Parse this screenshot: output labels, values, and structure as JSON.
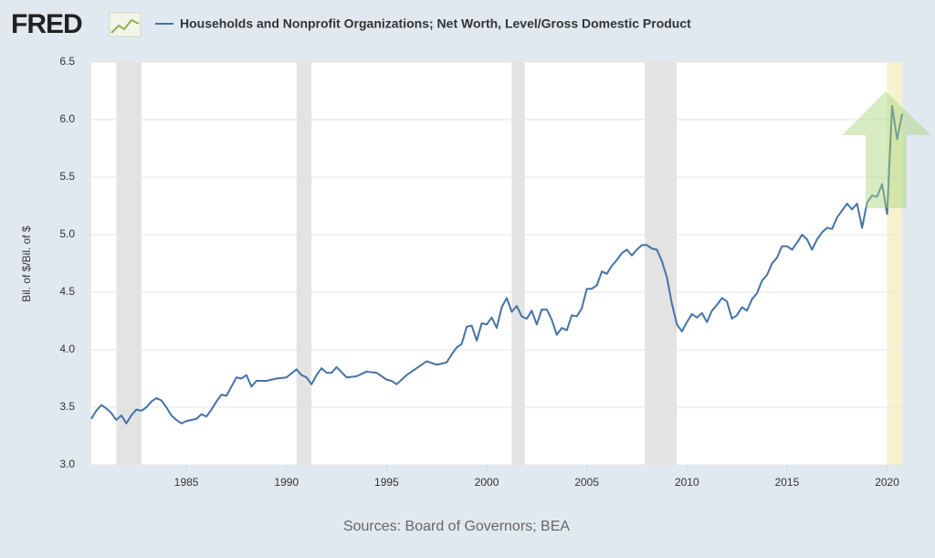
{
  "chart_data": {
    "type": "line",
    "logo": "FRED",
    "title": "Households and Nonprofit Organizations; Net Worth, Level/Gross Domestic Product",
    "y_label": "Bil. of $/Bil. of $",
    "source": "Sources: Board of Governors; BEA",
    "series": [
      {
        "name": "Households and Nonprofit Organizations; Net Worth, Level/Gross Domestic Product",
        "color": "#4572a7",
        "x": [
          1980.25,
          1980.5,
          1980.75,
          1981,
          1981.25,
          1981.5,
          1981.75,
          1982,
          1982.25,
          1982.5,
          1982.75,
          1983,
          1983.25,
          1983.5,
          1983.75,
          1984,
          1984.25,
          1984.5,
          1984.75,
          1985,
          1985.5,
          1985.75,
          1986,
          1986.25,
          1986.5,
          1986.75,
          1987,
          1987.25,
          1987.5,
          1987.75,
          1988,
          1988.25,
          1988.5,
          1989,
          1989.5,
          1990,
          1990.5,
          1990.75,
          1991,
          1991.25,
          1991.5,
          1991.75,
          1992,
          1992.25,
          1992.5,
          1993,
          1993.5,
          1994,
          1994.5,
          1995,
          1995.25,
          1995.5,
          1996,
          1996.5,
          1997,
          1997.5,
          1997.75,
          1998,
          1998.25,
          1998.5,
          1998.75,
          1999,
          1999.25,
          1999.5,
          1999.75,
          2000,
          2000.25,
          2000.5,
          2000.75,
          2001,
          2001.25,
          2001.5,
          2001.75,
          2002,
          2002.25,
          2002.5,
          2002.75,
          2003,
          2003.25,
          2003.5,
          2003.75,
          2004,
          2004.25,
          2004.5,
          2004.75,
          2005,
          2005.25,
          2005.5,
          2005.75,
          2006,
          2006.25,
          2006.5,
          2006.75,
          2007,
          2007.25,
          2007.5,
          2007.75,
          2008,
          2008.25,
          2008.5,
          2008.75,
          2009,
          2009.25,
          2009.5,
          2009.75,
          2010,
          2010.25,
          2010.5,
          2010.75,
          2011,
          2011.25,
          2011.5,
          2011.75,
          2012,
          2012.25,
          2012.5,
          2012.75,
          2013,
          2013.25,
          2013.5,
          2013.75,
          2014,
          2014.25,
          2014.5,
          2014.75,
          2015,
          2015.25,
          2015.5,
          2015.75,
          2016,
          2016.25,
          2016.5,
          2016.75,
          2017,
          2017.25,
          2017.5,
          2017.75,
          2018,
          2018.25,
          2018.5,
          2018.75,
          2019,
          2019.25,
          2019.5,
          2019.75,
          2020,
          2020.25,
          2020.5,
          2020.75
        ],
        "values": [
          3.4,
          3.47,
          3.52,
          3.49,
          3.45,
          3.39,
          3.43,
          3.36,
          3.43,
          3.48,
          3.47,
          3.5,
          3.55,
          3.58,
          3.56,
          3.5,
          3.43,
          3.39,
          3.36,
          3.38,
          3.4,
          3.44,
          3.42,
          3.48,
          3.55,
          3.61,
          3.6,
          3.68,
          3.76,
          3.75,
          3.78,
          3.68,
          3.73,
          3.73,
          3.75,
          3.76,
          3.83,
          3.78,
          3.76,
          3.7,
          3.78,
          3.84,
          3.8,
          3.8,
          3.85,
          3.76,
          3.77,
          3.81,
          3.8,
          3.74,
          3.73,
          3.7,
          3.78,
          3.84,
          3.9,
          3.87,
          3.88,
          3.89,
          3.96,
          4.02,
          4.05,
          4.2,
          4.21,
          4.08,
          4.23,
          4.22,
          4.28,
          4.19,
          4.37,
          4.45,
          4.33,
          4.38,
          4.29,
          4.27,
          4.34,
          4.22,
          4.35,
          4.35,
          4.26,
          4.13,
          4.19,
          4.17,
          4.3,
          4.29,
          4.36,
          4.53,
          4.53,
          4.56,
          4.68,
          4.66,
          4.73,
          4.78,
          4.84,
          4.87,
          4.82,
          4.87,
          4.91,
          4.91,
          4.88,
          4.87,
          4.77,
          4.63,
          4.4,
          4.22,
          4.16,
          4.24,
          4.31,
          4.28,
          4.32,
          4.24,
          4.34,
          4.39,
          4.45,
          4.42,
          4.27,
          4.3,
          4.37,
          4.34,
          4.44,
          4.49,
          4.6,
          4.65,
          4.75,
          4.8,
          4.9,
          4.9,
          4.87,
          4.93,
          5.0,
          4.96,
          4.87,
          4.96,
          5.02,
          5.06,
          5.05,
          5.15,
          5.21,
          5.27,
          5.22,
          5.27,
          5.06,
          5.28,
          5.34,
          5.33,
          5.44,
          5.18,
          6.12,
          5.83,
          6.05
        ]
      }
    ],
    "recessions": [
      [
        1981.5,
        1982.75
      ],
      [
        1990.5,
        1991.25
      ],
      [
        2001.25,
        2001.9
      ],
      [
        2007.9,
        2009.5
      ]
    ],
    "highlight": [
      2020,
      2020.75
    ],
    "xlim": [
      1980.25,
      2020.75
    ],
    "xticks": [
      1985,
      1990,
      1995,
      2000,
      2005,
      2010,
      2015,
      2020
    ],
    "ylim": [
      3,
      6.5
    ],
    "yticks": [
      {
        "value": 3,
        "label": "3.0"
      },
      3.5,
      {
        "value": 4,
        "label": "4.0"
      },
      4.5,
      {
        "value": 5,
        "label": "5.0"
      },
      5.5,
      {
        "value": 6,
        "label": "6.0"
      },
      6.5
    ],
    "grid": true
  }
}
